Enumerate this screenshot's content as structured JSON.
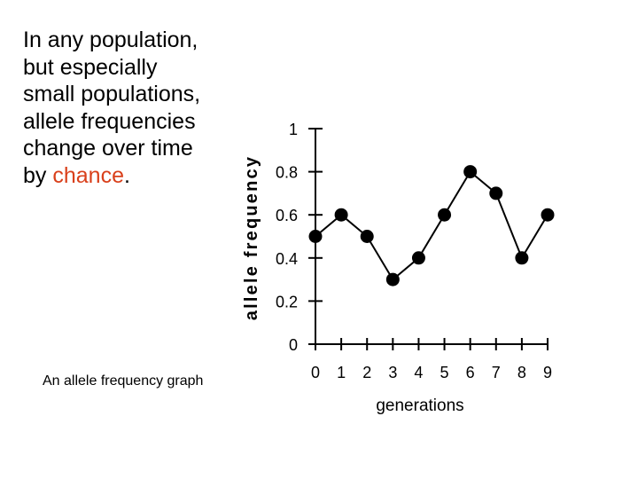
{
  "slide": {
    "text_before": "In any population, but especially small populations, allele frequencies change over time by ",
    "highlight": "chance",
    "text_after": ".",
    "caption": "An allele frequency graph",
    "highlight_color": "#d9401b"
  },
  "chart_data": {
    "type": "line",
    "title": "",
    "xlabel": "generations",
    "ylabel": "allele frequency",
    "x": [
      0,
      1,
      2,
      3,
      4,
      5,
      6,
      7,
      8,
      9
    ],
    "values": [
      0.5,
      0.6,
      0.5,
      0.3,
      0.4,
      0.6,
      0.8,
      0.7,
      0.4,
      0.6
    ],
    "xlim": [
      0,
      9
    ],
    "ylim": [
      0,
      1
    ],
    "x_ticks": [
      "0",
      "1",
      "2",
      "3",
      "4",
      "5",
      "6",
      "7",
      "8",
      "9"
    ],
    "y_ticks": [
      {
        "value": 0,
        "label": "0"
      },
      {
        "value": 0.2,
        "label": "0.2"
      },
      {
        "value": 0.4,
        "label": "0.4"
      },
      {
        "value": 0.6,
        "label": "0.6"
      },
      {
        "value": 0.8,
        "label": "0.8"
      },
      {
        "value": 1,
        "label": "1"
      }
    ],
    "grid": false,
    "marker": "filled-circle",
    "line_color": "#000000"
  }
}
